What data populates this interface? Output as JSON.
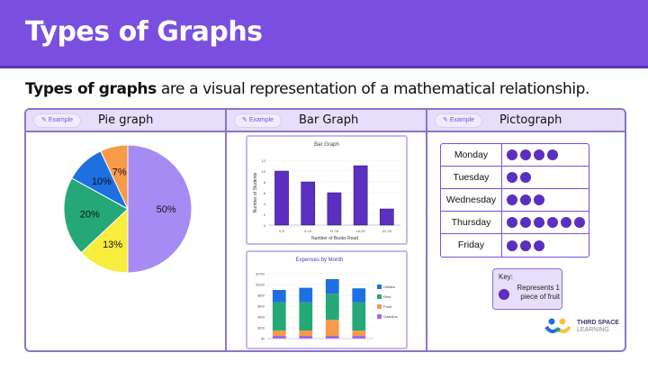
{
  "header": {
    "title": "Types of Graphs"
  },
  "subtitle": {
    "bold": "Types of graphs",
    "rest": " are a visual representation of a mathematical relationship."
  },
  "panels": [
    {
      "tag": "Example",
      "title": "Pie graph"
    },
    {
      "tag": "Example",
      "title": "Bar Graph"
    },
    {
      "tag": "Example",
      "title": "Pictograph"
    }
  ],
  "chart_data": [
    {
      "type": "pie",
      "labels": [
        "50%",
        "13%",
        "20%",
        "10%",
        "7%"
      ],
      "values": [
        50,
        13,
        20,
        10,
        7
      ],
      "colors": [
        "#a78bf5",
        "#f8ec3c",
        "#24a878",
        "#1e6fe0",
        "#f79a4a"
      ]
    },
    {
      "type": "bar",
      "title": "Bar Graph",
      "xlabel": "Number of Books Read",
      "ylabel": "Number of Students",
      "categories": [
        "0-5",
        "6-10",
        "11-15",
        "16-20",
        "21-25"
      ],
      "values": [
        10,
        8,
        6,
        11,
        3
      ],
      "ylim": [
        0,
        12
      ],
      "yticks": [
        0,
        2,
        4,
        6,
        8,
        10,
        12
      ],
      "color": "#5b2fc0"
    },
    {
      "type": "bar",
      "stacked": true,
      "title": "Expenses by Month",
      "categories": [
        "",
        "",
        "",
        ""
      ],
      "ylim": [
        0,
        1200
      ],
      "yticks": [
        "$0",
        "$200",
        "$400",
        "$600",
        "$800",
        "$1000",
        "$1200"
      ],
      "legend_position": "right",
      "series": [
        {
          "name": "Gasoline",
          "values": [
            50,
            50,
            50,
            50
          ],
          "color": "#a06ae8"
        },
        {
          "name": "Food",
          "values": [
            100,
            100,
            300,
            100
          ],
          "color": "#f79a4a"
        },
        {
          "name": "Rent",
          "values": [
            520,
            520,
            480,
            520
          ],
          "color": "#24a878"
        },
        {
          "name": "Utilities",
          "values": [
            230,
            270,
            270,
            260
          ],
          "color": "#1e6fe0"
        }
      ]
    }
  ],
  "pictograph": {
    "rows": [
      {
        "day": "Monday",
        "count": 4
      },
      {
        "day": "Tuesday",
        "count": 2
      },
      {
        "day": "Wednesday",
        "count": 3
      },
      {
        "day": "Thursday",
        "count": 6
      },
      {
        "day": "Friday",
        "count": 3
      }
    ],
    "key_title": "Key:",
    "key_text": "Represents 1 piece of fruit"
  },
  "logo": {
    "line1": "THIRD SPACE",
    "line2": "LEARNING"
  }
}
